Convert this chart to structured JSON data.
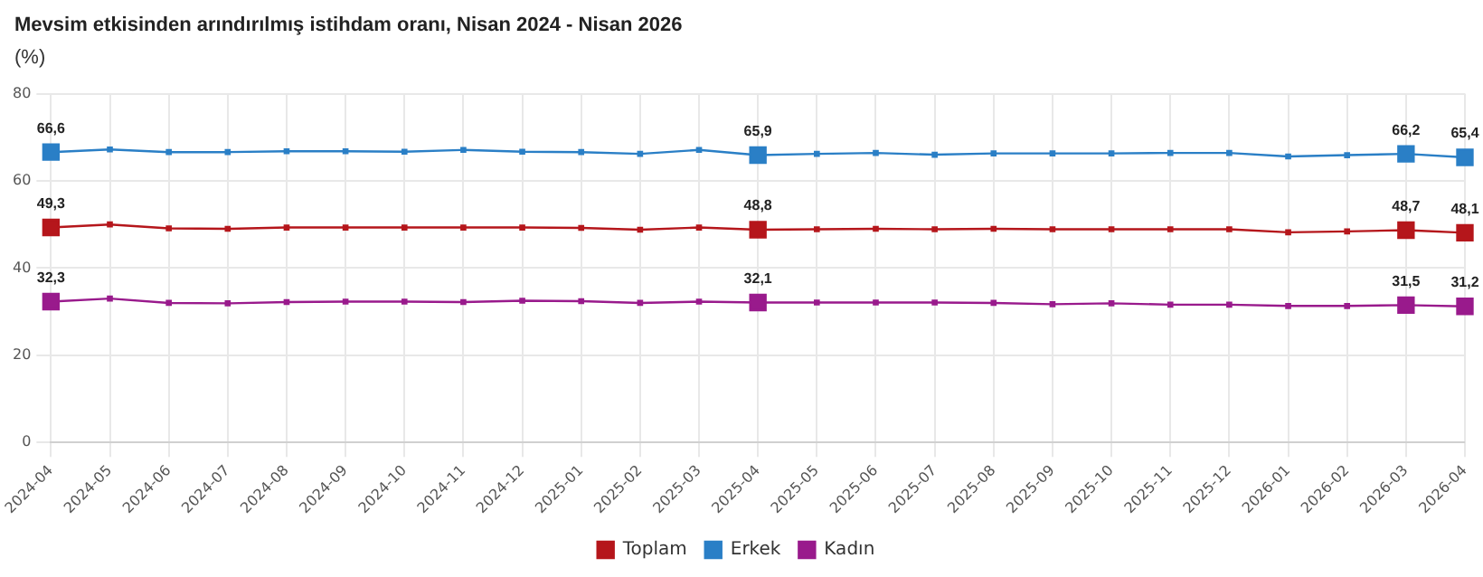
{
  "chart_data": {
    "type": "line",
    "title": "Mevsim etkisinden arındırılmış istihdam oranı, Nisan 2024 - Nisan 2026",
    "ylabel": "(%)",
    "categories": [
      "2024-04",
      "2024-05",
      "2024-06",
      "2024-07",
      "2024-08",
      "2024-09",
      "2024-10",
      "2024-11",
      "2024-12",
      "2025-01",
      "2025-02",
      "2025-03",
      "2025-04",
      "2025-05",
      "2025-06",
      "2025-07",
      "2025-08",
      "2025-09",
      "2025-10",
      "2025-11",
      "2025-12",
      "2026-01",
      "2026-02",
      "2026-03",
      "2026-04"
    ],
    "series": [
      {
        "name": "Toplam",
        "color": "#b5161b",
        "values": [
          49.3,
          50.0,
          49.1,
          49.0,
          49.3,
          49.3,
          49.3,
          49.3,
          49.3,
          49.2,
          48.8,
          49.3,
          48.8,
          48.9,
          49.0,
          48.9,
          49.0,
          48.9,
          48.9,
          48.9,
          48.9,
          48.2,
          48.4,
          48.7,
          48.1
        ],
        "value_labels": [
          "49,3",
          null,
          null,
          null,
          null,
          null,
          null,
          null,
          null,
          null,
          null,
          null,
          "48,8",
          null,
          null,
          null,
          null,
          null,
          null,
          null,
          null,
          null,
          null,
          "48,7",
          "48,1"
        ]
      },
      {
        "name": "Erkek",
        "color": "#2a7fc6",
        "values": [
          66.6,
          67.2,
          66.6,
          66.6,
          66.8,
          66.8,
          66.7,
          67.1,
          66.7,
          66.6,
          66.2,
          67.1,
          65.9,
          66.2,
          66.4,
          66.0,
          66.3,
          66.3,
          66.3,
          66.4,
          66.4,
          65.6,
          65.9,
          66.2,
          65.4
        ],
        "value_labels": [
          "66,6",
          null,
          null,
          null,
          null,
          null,
          null,
          null,
          null,
          null,
          null,
          null,
          "65,9",
          null,
          null,
          null,
          null,
          null,
          null,
          null,
          null,
          null,
          null,
          "66,2",
          "65,4"
        ]
      },
      {
        "name": "Kadın",
        "color": "#991a8c",
        "values": [
          32.3,
          33.0,
          32.0,
          31.9,
          32.2,
          32.3,
          32.3,
          32.2,
          32.5,
          32.4,
          32.0,
          32.3,
          32.1,
          32.1,
          32.1,
          32.1,
          32.0,
          31.7,
          31.9,
          31.6,
          31.6,
          31.3,
          31.3,
          31.5,
          31.2
        ],
        "value_labels": [
          "32,3",
          null,
          null,
          null,
          null,
          null,
          null,
          null,
          null,
          null,
          null,
          null,
          "32,1",
          null,
          null,
          null,
          null,
          null,
          null,
          null,
          null,
          null,
          null,
          "31,5",
          "31,2"
        ]
      }
    ],
    "ylim": [
      0,
      80
    ],
    "yticks": [
      0,
      20,
      40,
      60,
      80
    ],
    "grid": true,
    "legend": "bottom",
    "marker": "square",
    "line_style": "solid"
  }
}
